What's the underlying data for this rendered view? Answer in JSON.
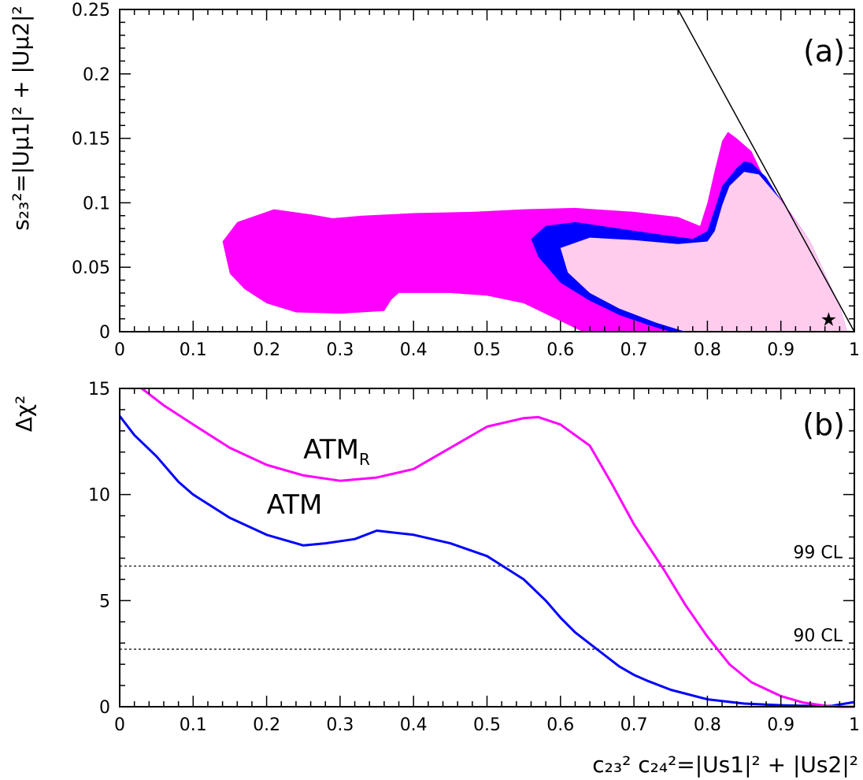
{
  "chart_data": [
    {
      "panel": "(a)",
      "type": "area",
      "ylabel": "s₂₃²=|Uμ1|² + |Uμ2|²",
      "xlim": [
        0,
        1
      ],
      "ylim": [
        0,
        0.25
      ],
      "xticks": [
        "0",
        "0.1",
        "0.2",
        "0.3",
        "0.4",
        "0.5",
        "0.6",
        "0.7",
        "0.8",
        "0.9",
        "1"
      ],
      "yticks": [
        "0",
        "0.05",
        "0.1",
        "0.15",
        "0.2",
        "0.25"
      ],
      "colors": {
        "outer": "#ff00ff",
        "middle": "#0000ff",
        "inner": "#ffccee"
      },
      "regions": [
        {
          "color": "#ff00ff",
          "points": [
            [
              0.15,
              0.045
            ],
            [
              0.14,
              0.07
            ],
            [
              0.16,
              0.085
            ],
            [
              0.21,
              0.095
            ],
            [
              0.26,
              0.091
            ],
            [
              0.29,
              0.088
            ],
            [
              0.33,
              0.09
            ],
            [
              0.4,
              0.092
            ],
            [
              0.48,
              0.093
            ],
            [
              0.55,
              0.095
            ],
            [
              0.62,
              0.096
            ],
            [
              0.7,
              0.093
            ],
            [
              0.76,
              0.089
            ],
            [
              0.79,
              0.082
            ],
            [
              0.8,
              0.1
            ],
            [
              0.81,
              0.125
            ],
            [
              0.82,
              0.148
            ],
            [
              0.828,
              0.155
            ],
            [
              0.84,
              0.15
            ],
            [
              0.86,
              0.14
            ],
            [
              0.88,
              0.116
            ],
            [
              0.9,
              0.103
            ],
            [
              0.94,
              0.07
            ],
            [
              0.98,
              0.02
            ],
            [
              0.99,
              0.0
            ],
            [
              0.63,
              0.0
            ],
            [
              0.55,
              0.022
            ],
            [
              0.5,
              0.028
            ],
            [
              0.45,
              0.03
            ],
            [
              0.4,
              0.03
            ],
            [
              0.38,
              0.03
            ],
            [
              0.37,
              0.025
            ],
            [
              0.36,
              0.016
            ],
            [
              0.3,
              0.014
            ],
            [
              0.24,
              0.015
            ],
            [
              0.2,
              0.022
            ],
            [
              0.17,
              0.033
            ]
          ]
        },
        {
          "color": "#0000ff",
          "points": [
            [
              0.57,
              0.058
            ],
            [
              0.56,
              0.072
            ],
            [
              0.58,
              0.082
            ],
            [
              0.62,
              0.085
            ],
            [
              0.68,
              0.08
            ],
            [
              0.74,
              0.075
            ],
            [
              0.78,
              0.072
            ],
            [
              0.8,
              0.078
            ],
            [
              0.81,
              0.095
            ],
            [
              0.82,
              0.113
            ],
            [
              0.84,
              0.127
            ],
            [
              0.85,
              0.132
            ],
            [
              0.86,
              0.131
            ],
            [
              0.88,
              0.12
            ],
            [
              0.9,
              0.102
            ],
            [
              0.94,
              0.07
            ],
            [
              0.98,
              0.02
            ],
            [
              0.99,
              0.0
            ],
            [
              0.75,
              0.0
            ],
            [
              0.72,
              0.005
            ],
            [
              0.68,
              0.013
            ],
            [
              0.64,
              0.024
            ],
            [
              0.6,
              0.038
            ]
          ]
        },
        {
          "color": "#ffccee",
          "points": [
            [
              0.6,
              0.065
            ],
            [
              0.64,
              0.073
            ],
            [
              0.7,
              0.071
            ],
            [
              0.76,
              0.068
            ],
            [
              0.8,
              0.07
            ],
            [
              0.81,
              0.078
            ],
            [
              0.82,
              0.098
            ],
            [
              0.83,
              0.113
            ],
            [
              0.85,
              0.124
            ],
            [
              0.87,
              0.122
            ],
            [
              0.9,
              0.102
            ],
            [
              0.94,
              0.07
            ],
            [
              0.98,
              0.02
            ],
            [
              0.99,
              0.0
            ],
            [
              0.77,
              0.0
            ],
            [
              0.73,
              0.007
            ],
            [
              0.68,
              0.018
            ],
            [
              0.64,
              0.03
            ],
            [
              0.61,
              0.046
            ]
          ]
        }
      ],
      "boundary_line": [
        [
          0.76,
          0.25
        ],
        [
          1.0,
          0.0
        ]
      ],
      "best_fit_star": {
        "x": 0.965,
        "y": 0.01,
        "symbol": "★"
      },
      "tag": "(a)"
    },
    {
      "panel": "(b)",
      "type": "line",
      "xlabel": "c₂₃² c₂₄²=|Us1|² + |Us2|²",
      "ylabel": "Δχ²",
      "xlim": [
        0,
        1
      ],
      "ylim": [
        0,
        15
      ],
      "xticks": [
        "0",
        "0.1",
        "0.2",
        "0.3",
        "0.4",
        "0.5",
        "0.6",
        "0.7",
        "0.8",
        "0.9",
        "1"
      ],
      "yticks": [
        "0",
        "5",
        "10",
        "15"
      ],
      "series": [
        {
          "name": "ATM",
          "color": "#0000ff",
          "x": [
            0.0,
            0.02,
            0.05,
            0.08,
            0.1,
            0.15,
            0.2,
            0.25,
            0.28,
            0.32,
            0.35,
            0.4,
            0.45,
            0.5,
            0.55,
            0.58,
            0.6,
            0.62,
            0.65,
            0.68,
            0.7,
            0.72,
            0.75,
            0.8,
            0.85,
            0.9,
            0.95,
            0.97,
            1.0
          ],
          "y": [
            13.7,
            12.8,
            11.8,
            10.6,
            10.0,
            8.9,
            8.1,
            7.6,
            7.7,
            7.9,
            8.3,
            8.1,
            7.7,
            7.1,
            6.0,
            5.0,
            4.2,
            3.5,
            2.7,
            1.9,
            1.5,
            1.2,
            0.8,
            0.35,
            0.15,
            0.07,
            0.03,
            0.05,
            0.22
          ]
        },
        {
          "name": "ATMR",
          "color": "#ff00ff",
          "x": [
            0.03,
            0.06,
            0.1,
            0.15,
            0.2,
            0.25,
            0.3,
            0.35,
            0.4,
            0.45,
            0.5,
            0.55,
            0.57,
            0.6,
            0.64,
            0.67,
            0.7,
            0.74,
            0.77,
            0.8,
            0.83,
            0.86,
            0.9,
            0.93,
            0.96,
            0.98,
            1.0
          ],
          "y": [
            15.0,
            14.2,
            13.3,
            12.2,
            11.4,
            10.9,
            10.65,
            10.8,
            11.2,
            12.2,
            13.2,
            13.6,
            13.65,
            13.3,
            12.3,
            10.5,
            8.6,
            6.5,
            4.8,
            3.3,
            2.0,
            1.15,
            0.5,
            0.2,
            0.05,
            0.0,
            0.0
          ]
        }
      ],
      "reference_lines": [
        {
          "y": 6.63,
          "label": "99 CL"
        },
        {
          "y": 2.71,
          "label": "90 CL"
        }
      ],
      "curve_labels": [
        {
          "text": "ATM",
          "subscript": "R",
          "x": 0.25,
          "y": 11.7
        },
        {
          "text": "ATM",
          "subscript": "",
          "x": 0.2,
          "y": 9.1
        }
      ],
      "tag": "(b)"
    }
  ]
}
